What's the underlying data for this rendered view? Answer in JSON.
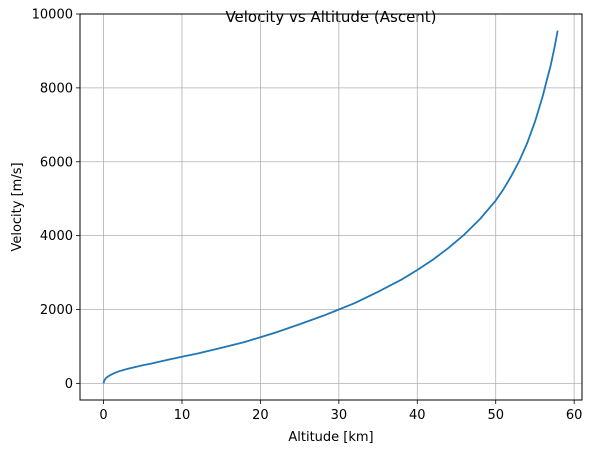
{
  "chart_data": {
    "type": "line",
    "title": "Velocity vs Altitude (Ascent)",
    "xlabel": "Altitude [km]",
    "ylabel": "Velocity [m/s]",
    "xlim": [
      -3,
      61
    ],
    "ylim": [
      -450,
      10000
    ],
    "xticks": [
      0,
      10,
      20,
      30,
      40,
      50,
      60
    ],
    "yticks": [
      0,
      2000,
      4000,
      6000,
      8000,
      10000
    ],
    "grid": true,
    "series": [
      {
        "color": "#1f77b4",
        "x": [
          0,
          0.1,
          0.3,
          0.6,
          1,
          1.5,
          2,
          3,
          4,
          5,
          6,
          8,
          10,
          12,
          15,
          18,
          20,
          22,
          25,
          28,
          30,
          32,
          35,
          38,
          40,
          42,
          44,
          46,
          48,
          50,
          51,
          52,
          53,
          54,
          55,
          56,
          56.5,
          57,
          57.5,
          57.9
        ],
        "y": [
          0,
          80,
          140,
          190,
          240,
          290,
          330,
          390,
          440,
          490,
          530,
          630,
          720,
          810,
          960,
          1120,
          1250,
          1380,
          1600,
          1830,
          2000,
          2170,
          2480,
          2810,
          3070,
          3350,
          3670,
          4030,
          4450,
          4950,
          5260,
          5620,
          6020,
          6500,
          7080,
          7780,
          8200,
          8600,
          9100,
          9550
        ]
      }
    ]
  }
}
